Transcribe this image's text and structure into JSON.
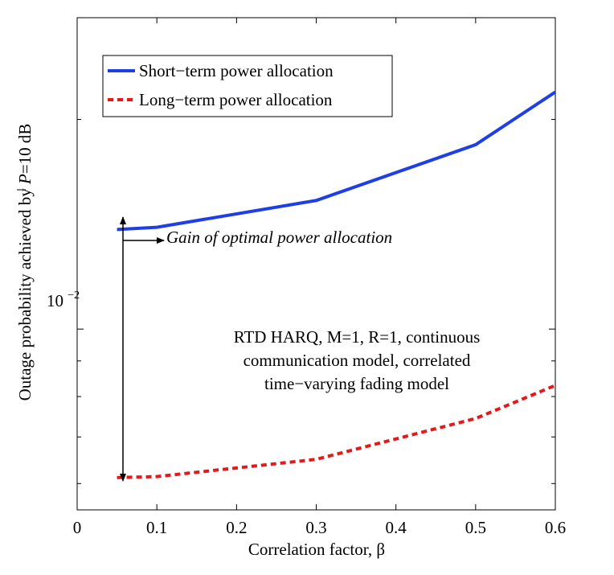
{
  "chart_data": {
    "type": "line",
    "xlabel": "Correlation factor, β",
    "ylabel": {
      "prefix": "Outage probability achieved by ",
      "symbol": "P",
      "suffix": "=10 dB"
    },
    "x_scale": "linear",
    "y_scale": "log",
    "xlim": [
      0,
      0.6
    ],
    "ylim": [
      0.0055,
      0.028
    ],
    "x_ticks": [
      0,
      0.1,
      0.2,
      0.3,
      0.4,
      0.5,
      0.6
    ],
    "x_tick_labels": [
      "0",
      "0.1",
      "0.2",
      "0.3",
      "0.4",
      "0.5",
      "0.6"
    ],
    "y_tick_label": {
      "base": "10",
      "exp": "−2",
      "value": 0.01
    },
    "grid": false,
    "legend_position": "top-left",
    "series": [
      {
        "name": "Short−term power allocation",
        "color": "#1f3fe6",
        "style": "solid",
        "x": [
          0.05,
          0.1,
          0.3,
          0.5,
          0.6
        ],
        "y": [
          0.0139,
          0.014,
          0.0153,
          0.0184,
          0.0219
        ]
      },
      {
        "name": "Long−term power allocation",
        "color": "#e41a1a",
        "style": "dashed",
        "x": [
          0.05,
          0.1,
          0.3,
          0.5,
          0.6
        ],
        "y": [
          0.00612,
          0.00614,
          0.0065,
          0.00744,
          0.0083
        ]
      }
    ],
    "annotations": {
      "gain": "Gain of optimal power allocation",
      "description": [
        "RTD HARQ, M=1, R=1, continuous",
        "communication model, correlated",
        "time−varying fading model"
      ]
    }
  }
}
